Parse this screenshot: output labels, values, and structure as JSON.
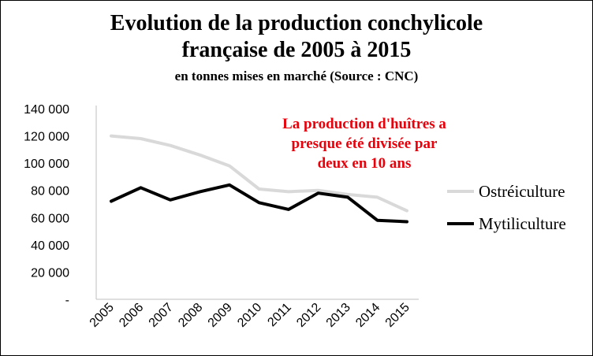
{
  "chart_data": {
    "type": "line",
    "title_line1": "Evolution de la production conchylicole",
    "title_line2": "française de 2005 à 2015",
    "subtitle": "en tonnes mises en marché (Source : CNC)",
    "annotation": [
      "La production d'huîtres a",
      "presque été divisée par",
      "deux en 10 ans"
    ],
    "x": [
      "2005",
      "2006",
      "2007",
      "2008",
      "2009",
      "2010",
      "2011",
      "2012",
      "2013",
      "2014",
      "2015"
    ],
    "y_ticks": [
      {
        "value": 0,
        "label": "-"
      },
      {
        "value": 20000,
        "label": "20 000"
      },
      {
        "value": 40000,
        "label": "40 000"
      },
      {
        "value": 60000,
        "label": "60 000"
      },
      {
        "value": 80000,
        "label": "80 000"
      },
      {
        "value": 100000,
        "label": "100 000"
      },
      {
        "value": 120000,
        "label": "120 000"
      },
      {
        "value": 140000,
        "label": "140 000"
      }
    ],
    "ylim": [
      0,
      140000
    ],
    "grid": false,
    "legend_position": "right",
    "series": [
      {
        "name": "Ostréiculture",
        "color": "#d9d9d9",
        "values": [
          120000,
          118000,
          113000,
          106000,
          98000,
          81000,
          79000,
          80000,
          77000,
          75000,
          65000
        ]
      },
      {
        "name": "Mytiliculture",
        "color": "#000000",
        "values": [
          72000,
          82000,
          73000,
          79000,
          84000,
          71000,
          66000,
          78000,
          75000,
          58000,
          57000
        ]
      }
    ]
  }
}
